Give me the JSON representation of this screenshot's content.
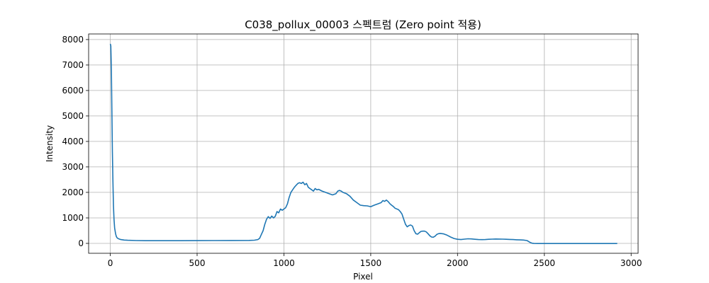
{
  "chart_data": {
    "type": "line",
    "title": "C038_pollux_00003 스펙트럼 (Zero point 적용)",
    "xlabel": "Pixel",
    "ylabel": "Intensity",
    "xlim": [
      -125,
      3040
    ],
    "ylim": [
      -390,
      8220
    ],
    "xticks": [
      0,
      500,
      1000,
      1500,
      2000,
      2500,
      3000
    ],
    "yticks": [
      0,
      1000,
      2000,
      3000,
      4000,
      5000,
      6000,
      7000,
      8000
    ],
    "grid": true,
    "colors": {
      "series": "#1f77b4",
      "grid": "#b0b0b0"
    },
    "series": [
      {
        "points": [
          [
            0,
            7830
          ],
          [
            3,
            7750
          ],
          [
            6,
            6800
          ],
          [
            9,
            5200
          ],
          [
            12,
            3600
          ],
          [
            15,
            2400
          ],
          [
            18,
            1500
          ],
          [
            21,
            950
          ],
          [
            25,
            600
          ],
          [
            30,
            380
          ],
          [
            35,
            260
          ],
          [
            40,
            210
          ],
          [
            50,
            170
          ],
          [
            60,
            150
          ],
          [
            80,
            130
          ],
          [
            100,
            120
          ],
          [
            150,
            110
          ],
          [
            200,
            105
          ],
          [
            300,
            105
          ],
          [
            400,
            105
          ],
          [
            500,
            108
          ],
          [
            600,
            110
          ],
          [
            700,
            112
          ],
          [
            800,
            115
          ],
          [
            830,
            125
          ],
          [
            850,
            150
          ],
          [
            860,
            200
          ],
          [
            870,
            350
          ],
          [
            880,
            500
          ],
          [
            890,
            750
          ],
          [
            900,
            950
          ],
          [
            910,
            1050
          ],
          [
            920,
            980
          ],
          [
            930,
            1070
          ],
          [
            940,
            1000
          ],
          [
            950,
            1060
          ],
          [
            960,
            1250
          ],
          [
            970,
            1200
          ],
          [
            980,
            1350
          ],
          [
            990,
            1300
          ],
          [
            1000,
            1350
          ],
          [
            1010,
            1400
          ],
          [
            1020,
            1550
          ],
          [
            1030,
            1800
          ],
          [
            1040,
            2000
          ],
          [
            1050,
            2100
          ],
          [
            1060,
            2200
          ],
          [
            1070,
            2280
          ],
          [
            1080,
            2350
          ],
          [
            1090,
            2380
          ],
          [
            1100,
            2350
          ],
          [
            1110,
            2400
          ],
          [
            1120,
            2300
          ],
          [
            1130,
            2350
          ],
          [
            1140,
            2200
          ],
          [
            1150,
            2150
          ],
          [
            1160,
            2100
          ],
          [
            1170,
            2050
          ],
          [
            1180,
            2150
          ],
          [
            1190,
            2100
          ],
          [
            1200,
            2120
          ],
          [
            1220,
            2050
          ],
          [
            1240,
            2000
          ],
          [
            1260,
            1950
          ],
          [
            1280,
            1900
          ],
          [
            1300,
            1950
          ],
          [
            1310,
            2050
          ],
          [
            1320,
            2080
          ],
          [
            1330,
            2050
          ],
          [
            1340,
            2000
          ],
          [
            1360,
            1950
          ],
          [
            1380,
            1850
          ],
          [
            1400,
            1700
          ],
          [
            1420,
            1600
          ],
          [
            1440,
            1500
          ],
          [
            1460,
            1480
          ],
          [
            1480,
            1470
          ],
          [
            1500,
            1440
          ],
          [
            1520,
            1500
          ],
          [
            1540,
            1550
          ],
          [
            1560,
            1600
          ],
          [
            1570,
            1680
          ],
          [
            1580,
            1650
          ],
          [
            1590,
            1700
          ],
          [
            1600,
            1640
          ],
          [
            1610,
            1560
          ],
          [
            1620,
            1500
          ],
          [
            1630,
            1450
          ],
          [
            1640,
            1380
          ],
          [
            1660,
            1320
          ],
          [
            1670,
            1250
          ],
          [
            1680,
            1150
          ],
          [
            1690,
            950
          ],
          [
            1700,
            750
          ],
          [
            1710,
            650
          ],
          [
            1720,
            700
          ],
          [
            1730,
            720
          ],
          [
            1740,
            680
          ],
          [
            1750,
            500
          ],
          [
            1760,
            380
          ],
          [
            1770,
            360
          ],
          [
            1780,
            420
          ],
          [
            1790,
            470
          ],
          [
            1800,
            480
          ],
          [
            1810,
            480
          ],
          [
            1820,
            450
          ],
          [
            1830,
            380
          ],
          [
            1840,
            300
          ],
          [
            1850,
            250
          ],
          [
            1860,
            240
          ],
          [
            1870,
            280
          ],
          [
            1880,
            350
          ],
          [
            1890,
            380
          ],
          [
            1900,
            390
          ],
          [
            1920,
            370
          ],
          [
            1940,
            320
          ],
          [
            1960,
            250
          ],
          [
            1980,
            190
          ],
          [
            2000,
            160
          ],
          [
            2020,
            150
          ],
          [
            2040,
            165
          ],
          [
            2060,
            180
          ],
          [
            2080,
            175
          ],
          [
            2100,
            160
          ],
          [
            2120,
            150
          ],
          [
            2140,
            145
          ],
          [
            2160,
            150
          ],
          [
            2180,
            160
          ],
          [
            2200,
            165
          ],
          [
            2220,
            170
          ],
          [
            2240,
            168
          ],
          [
            2260,
            165
          ],
          [
            2280,
            160
          ],
          [
            2300,
            155
          ],
          [
            2320,
            150
          ],
          [
            2340,
            140
          ],
          [
            2360,
            135
          ],
          [
            2380,
            130
          ],
          [
            2400,
            110
          ],
          [
            2410,
            70
          ],
          [
            2420,
            30
          ],
          [
            2430,
            5
          ],
          [
            2440,
            -5
          ],
          [
            2460,
            -8
          ],
          [
            2500,
            -8
          ],
          [
            2600,
            -8
          ],
          [
            2700,
            -8
          ],
          [
            2800,
            -8
          ],
          [
            2920,
            -8
          ]
        ]
      }
    ]
  }
}
